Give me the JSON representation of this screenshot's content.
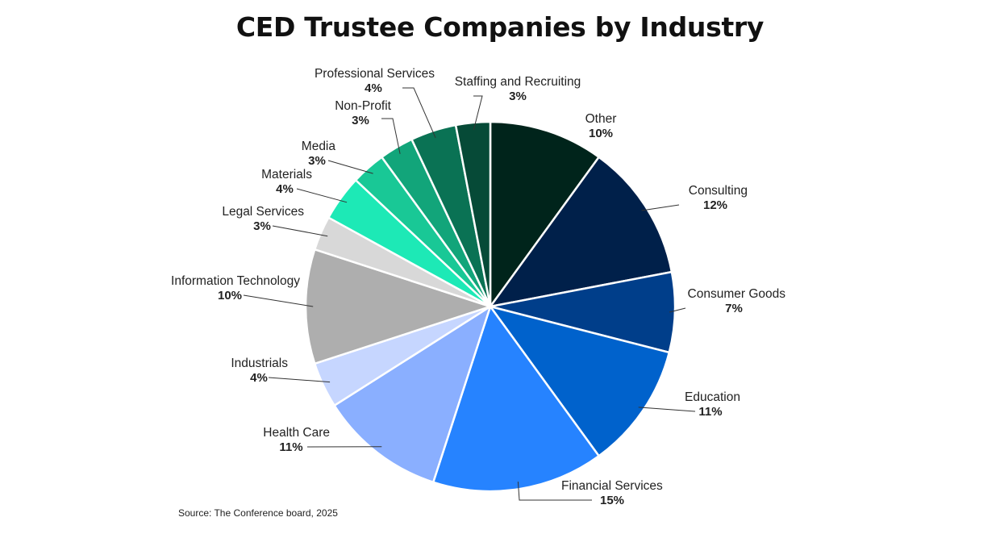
{
  "chart_data": {
    "type": "pie",
    "title": "CED Trustee Companies by Industry",
    "slices": [
      {
        "label": "Other",
        "value": 10,
        "value_label": "10%",
        "color": "#00241b"
      },
      {
        "label": "Consulting",
        "value": 12,
        "value_label": "12%",
        "color": "#00204a"
      },
      {
        "label": "Consumer Goods",
        "value": 7,
        "value_label": "7%",
        "color": "#003e8a"
      },
      {
        "label": "Education",
        "value": 11,
        "value_label": "11%",
        "color": "#0062cc"
      },
      {
        "label": "Financial Services",
        "value": 15,
        "value_label": "15%",
        "color": "#2683ff"
      },
      {
        "label": "Health Care",
        "value": 11,
        "value_label": "11%",
        "color": "#8aafff"
      },
      {
        "label": "Industrials",
        "value": 4,
        "value_label": "4%",
        "color": "#c6d6ff"
      },
      {
        "label": "Information Technology",
        "value": 10,
        "value_label": "10%",
        "color": "#aeaeae"
      },
      {
        "label": "Legal Services",
        "value": 3,
        "value_label": "3%",
        "color": "#d8d8d8"
      },
      {
        "label": "Materials",
        "value": 4,
        "value_label": "4%",
        "color": "#1de9b6"
      },
      {
        "label": "Media",
        "value": 3,
        "value_label": "3%",
        "color": "#19c896"
      },
      {
        "label": "Non-Profit",
        "value": 3,
        "value_label": "3%",
        "color": "#12a57a"
      },
      {
        "label": "Professional Services",
        "value": 4,
        "value_label": "4%",
        "color": "#0a7254"
      },
      {
        "label": "Staffing and Recruiting",
        "value": 3,
        "value_label": "3%",
        "color": "#064a37"
      }
    ]
  },
  "source": "Source: The Conference board, 2025"
}
